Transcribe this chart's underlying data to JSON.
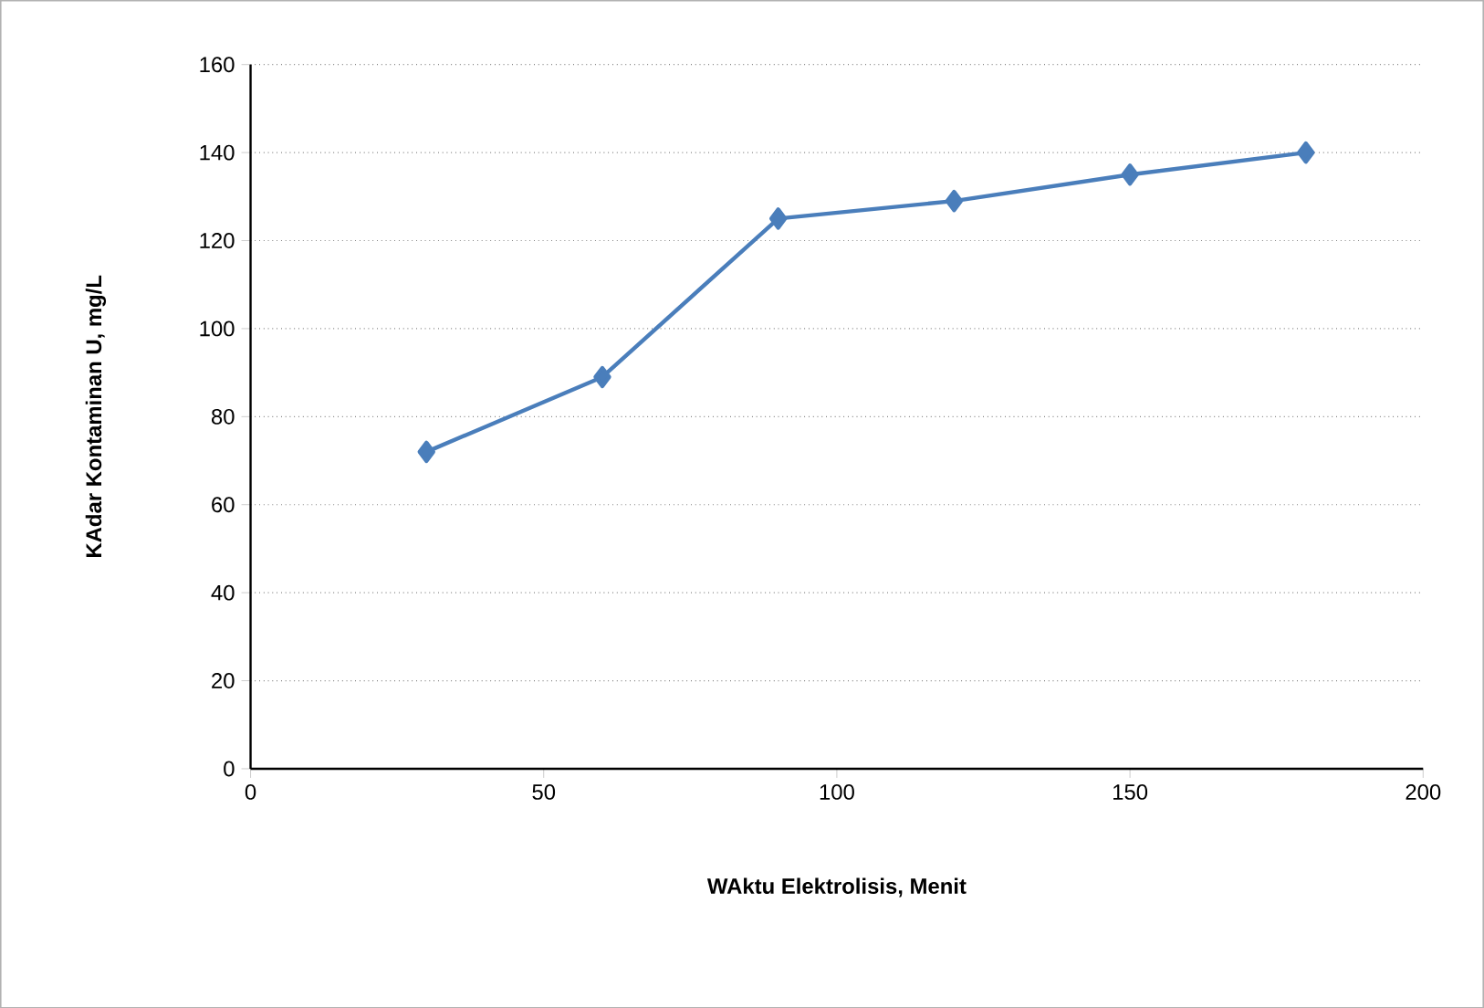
{
  "chart_data": {
    "type": "line",
    "xlabel": "WAktu Elektrolisis, Menit",
    "ylabel": "KAdar Kontaminan U, mg/L",
    "x": [
      30,
      60,
      90,
      120,
      150,
      180
    ],
    "series": [
      {
        "color": "#4a7ebb",
        "values": [
          72,
          89,
          125,
          129,
          135,
          140
        ]
      }
    ],
    "xlim": [
      0,
      200
    ],
    "xticks": [
      0,
      50,
      100,
      150,
      200
    ],
    "ylim": [
      0,
      160
    ],
    "yticks": [
      0,
      20,
      40,
      60,
      80,
      100,
      120,
      140,
      160
    ],
    "grid": "y",
    "marker": "diamond",
    "line_style": "solid"
  }
}
